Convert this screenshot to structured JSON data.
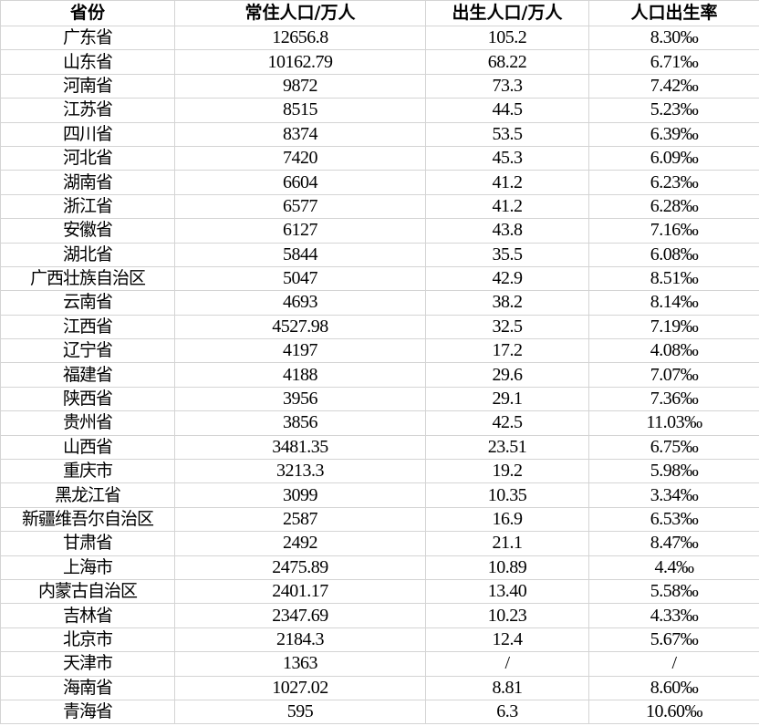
{
  "table": {
    "headers": [
      "省份",
      "常住人口/万人",
      "出生人口/万人",
      "人口出生率"
    ],
    "rows": [
      [
        "广东省",
        "12656.8",
        "105.2",
        "8.30‰"
      ],
      [
        "山东省",
        "10162.79",
        "68.22",
        "6.71‰"
      ],
      [
        "河南省",
        "9872",
        "73.3",
        "7.42‰"
      ],
      [
        "江苏省",
        "8515",
        "44.5",
        "5.23‰"
      ],
      [
        "四川省",
        "8374",
        "53.5",
        "6.39‰"
      ],
      [
        "河北省",
        "7420",
        "45.3",
        "6.09‰"
      ],
      [
        "湖南省",
        "6604",
        "41.2",
        "6.23‰"
      ],
      [
        "浙江省",
        "6577",
        "41.2",
        "6.28‰"
      ],
      [
        "安徽省",
        "6127",
        "43.8",
        "7.16‰"
      ],
      [
        "湖北省",
        "5844",
        "35.5",
        "6.08‰"
      ],
      [
        "广西壮族自治区",
        "5047",
        "42.9",
        "8.51‰"
      ],
      [
        "云南省",
        "4693",
        "38.2",
        "8.14‰"
      ],
      [
        "江西省",
        "4527.98",
        "32.5",
        "7.19‰"
      ],
      [
        "辽宁省",
        "4197",
        "17.2",
        "4.08‰"
      ],
      [
        "福建省",
        "4188",
        "29.6",
        "7.07‰"
      ],
      [
        "陕西省",
        "3956",
        "29.1",
        "7.36‰"
      ],
      [
        "贵州省",
        "3856",
        "42.5",
        "11.03‰"
      ],
      [
        "山西省",
        "3481.35",
        "23.51",
        "6.75‰"
      ],
      [
        "重庆市",
        "3213.3",
        "19.2",
        "5.98‰"
      ],
      [
        "黑龙江省",
        "3099",
        "10.35",
        "3.34‰"
      ],
      [
        "新疆维吾尔自治区",
        "2587",
        "16.9",
        "6.53‰"
      ],
      [
        "甘肃省",
        "2492",
        "21.1",
        "8.47‰"
      ],
      [
        "上海市",
        "2475.89",
        "10.89",
        "4.4‰"
      ],
      [
        "内蒙古自治区",
        "2401.17",
        "13.40",
        "5.58‰"
      ],
      [
        "吉林省",
        "2347.69",
        "10.23",
        "4.33‰"
      ],
      [
        "北京市",
        "2184.3",
        "12.4",
        "5.67‰"
      ],
      [
        "天津市",
        "1363",
        "/",
        "/"
      ],
      [
        "海南省",
        "1027.02",
        "8.81",
        "8.60‰"
      ],
      [
        "青海省",
        "595",
        "6.3",
        "10.60‰"
      ]
    ]
  }
}
